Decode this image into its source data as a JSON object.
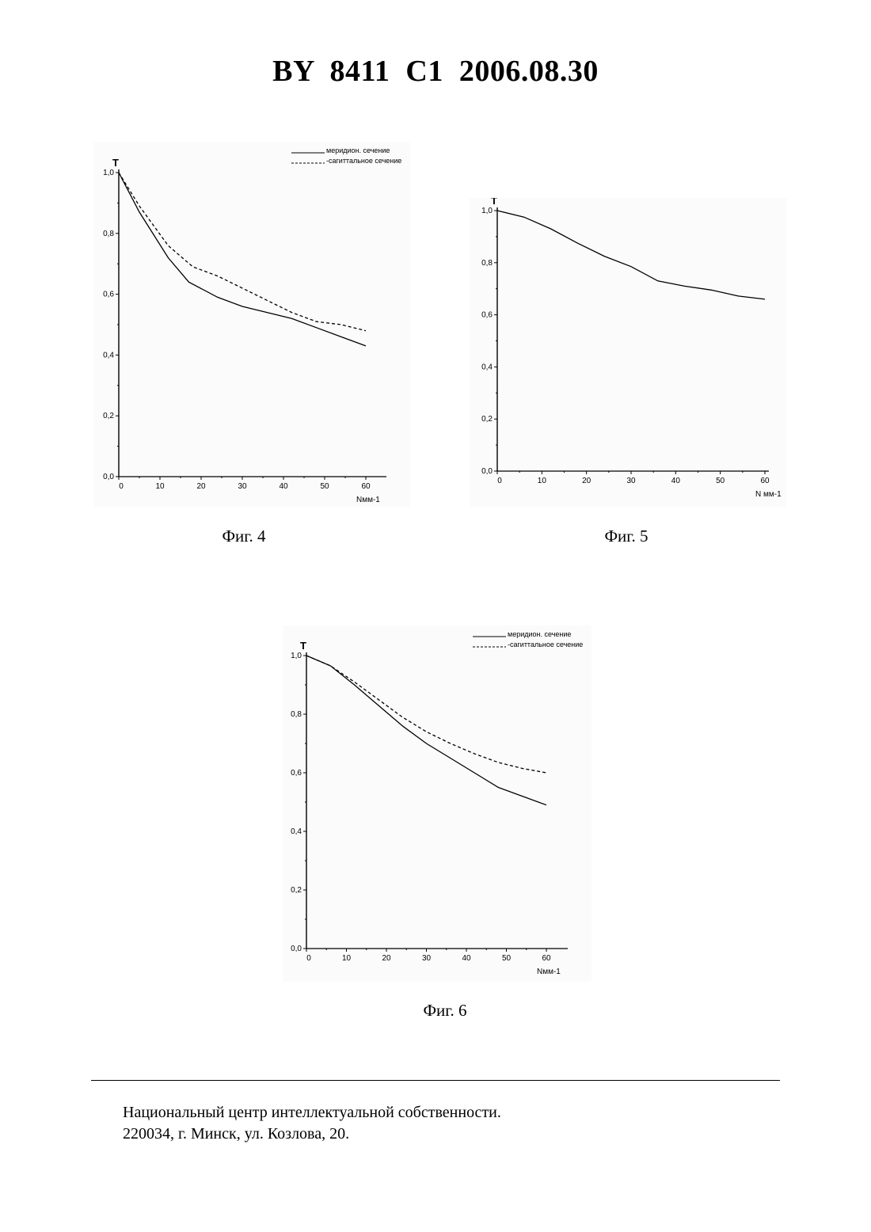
{
  "header": {
    "text": "BY  8411  C1  2006.08.30"
  },
  "chart_data": [
    {
      "id": "fig4",
      "type": "line",
      "caption": "Фиг. 4",
      "ylabel": "T",
      "xlabel": "Nмм-1",
      "xlim": [
        0,
        60
      ],
      "ylim": [
        0,
        1.0
      ],
      "xticks": [
        "0",
        "10",
        "20",
        "30",
        "40",
        "50",
        "60"
      ],
      "yticks": [
        "0,0",
        "0,2",
        "0,4",
        "0,6",
        "0,8",
        "1,0"
      ],
      "legend_position": "top-right",
      "series": [
        {
          "name": "меридион. сечение",
          "style": "solid",
          "x": [
            0,
            5,
            12,
            17,
            24,
            30,
            36,
            42,
            48,
            54,
            60
          ],
          "y": [
            1.0,
            0.87,
            0.72,
            0.64,
            0.59,
            0.56,
            0.54,
            0.52,
            0.49,
            0.46,
            0.43
          ]
        },
        {
          "name": "-сагиттальное сечение",
          "style": "dashed",
          "x": [
            0,
            5,
            12,
            18,
            24,
            30,
            36,
            42,
            48,
            54,
            60
          ],
          "y": [
            1.0,
            0.89,
            0.76,
            0.69,
            0.66,
            0.62,
            0.58,
            0.54,
            0.51,
            0.5,
            0.48
          ]
        }
      ]
    },
    {
      "id": "fig5",
      "type": "line",
      "caption": "Фиг. 5",
      "ylabel": "T",
      "xlabel": "N мм-1",
      "xlim": [
        0,
        60
      ],
      "ylim": [
        0,
        1.0
      ],
      "xticks": [
        "0",
        "10",
        "20",
        "30",
        "40",
        "50",
        "60"
      ],
      "yticks": [
        "0,0",
        "0,2",
        "0,4",
        "0,6",
        "0,8",
        "1,0"
      ],
      "legend_position": "none",
      "series": [
        {
          "name": "",
          "style": "solid",
          "x": [
            0,
            6,
            12,
            18,
            24,
            30,
            36,
            42,
            48,
            54,
            60
          ],
          "y": [
            1.0,
            0.975,
            0.93,
            0.875,
            0.825,
            0.785,
            0.73,
            0.71,
            0.695,
            0.672,
            0.66
          ]
        }
      ]
    },
    {
      "id": "fig6",
      "type": "line",
      "caption": "Фиг. 6",
      "ylabel": "T",
      "xlabel": "Nмм-1",
      "xlim": [
        0,
        60
      ],
      "ylim": [
        0,
        1.0
      ],
      "xticks": [
        "0",
        "10",
        "20",
        "30",
        "40",
        "50",
        "60"
      ],
      "yticks": [
        "0,0",
        "0,2",
        "0,4",
        "0,6",
        "0,8",
        "1,0"
      ],
      "legend_position": "top-right",
      "series": [
        {
          "name": "меридион. сечение",
          "style": "solid",
          "x": [
            0,
            6,
            12,
            18,
            24,
            30,
            36,
            42,
            48,
            54,
            60
          ],
          "y": [
            1.0,
            0.965,
            0.9,
            0.83,
            0.76,
            0.7,
            0.65,
            0.6,
            0.55,
            0.52,
            0.49
          ]
        },
        {
          "name": "-сагиттальное сечение",
          "style": "dashed",
          "x": [
            0,
            6,
            12,
            18,
            24,
            30,
            36,
            42,
            48,
            54,
            60
          ],
          "y": [
            1.0,
            0.965,
            0.91,
            0.85,
            0.79,
            0.74,
            0.7,
            0.665,
            0.635,
            0.615,
            0.6
          ]
        }
      ]
    }
  ],
  "footer": {
    "line1": "Национальный центр интеллектуальной собственности.",
    "line2": "220034, г. Минск, ул. Козлова, 20."
  }
}
